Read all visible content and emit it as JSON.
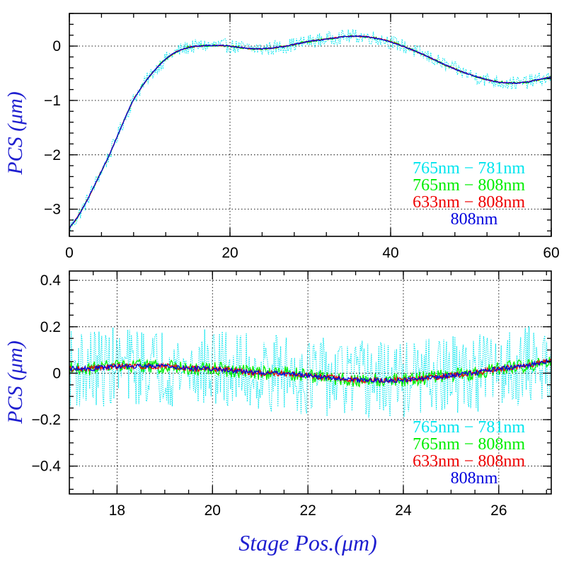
{
  "chart_data": [
    {
      "type": "line",
      "panel": "top",
      "ylabel": "PCS (μm)",
      "xlabel": "",
      "xlim": [
        0,
        60
      ],
      "ylim": [
        -3.5,
        0.6
      ],
      "x_ticks": [
        0,
        20,
        40,
        60
      ],
      "y_ticks": [
        -3,
        -2,
        -1,
        0
      ],
      "grid": true,
      "legend_placement": "lower-right",
      "x": [
        0,
        1,
        2,
        3,
        4,
        5,
        6,
        7,
        8,
        9,
        10,
        11,
        12,
        13,
        14,
        15,
        16,
        17,
        18,
        19,
        20,
        21,
        22,
        23,
        24,
        25,
        26,
        27,
        28,
        29,
        30,
        31,
        32,
        33,
        34,
        35,
        36,
        37,
        38,
        39,
        40,
        41,
        42,
        43,
        44,
        45,
        46,
        47,
        48,
        49,
        50,
        51,
        52,
        53,
        54,
        55,
        56,
        57,
        58,
        59,
        60
      ],
      "series": [
        {
          "name": "765nm − 781nm",
          "color": "#00e5ee",
          "style": "dotted",
          "noise": 0.13,
          "values": [
            -3.35,
            -3.15,
            -2.9,
            -2.6,
            -2.3,
            -2.0,
            -1.65,
            -1.3,
            -0.98,
            -0.75,
            -0.55,
            -0.38,
            -0.24,
            -0.13,
            -0.06,
            -0.02,
            0.0,
            0.01,
            0.01,
            0.01,
            0.0,
            -0.02,
            -0.04,
            -0.05,
            -0.05,
            -0.04,
            -0.02,
            0.0,
            0.03,
            0.06,
            0.09,
            0.11,
            0.13,
            0.15,
            0.17,
            0.18,
            0.18,
            0.17,
            0.15,
            0.12,
            0.08,
            0.03,
            -0.03,
            -0.09,
            -0.15,
            -0.22,
            -0.29,
            -0.36,
            -0.42,
            -0.48,
            -0.53,
            -0.58,
            -0.62,
            -0.65,
            -0.67,
            -0.68,
            -0.68,
            -0.66,
            -0.63,
            -0.6,
            -0.57
          ]
        },
        {
          "name": "765nm − 808nm",
          "color": "#00ee00",
          "style": "solid",
          "noise": 0.02,
          "values": [
            -3.35,
            -3.15,
            -2.9,
            -2.6,
            -2.3,
            -2.0,
            -1.65,
            -1.3,
            -0.98,
            -0.75,
            -0.55,
            -0.38,
            -0.24,
            -0.13,
            -0.06,
            -0.02,
            0.0,
            0.01,
            0.01,
            0.01,
            0.0,
            -0.02,
            -0.04,
            -0.05,
            -0.05,
            -0.04,
            -0.02,
            0.0,
            0.03,
            0.06,
            0.09,
            0.11,
            0.13,
            0.15,
            0.17,
            0.18,
            0.18,
            0.17,
            0.15,
            0.12,
            0.08,
            0.03,
            -0.03,
            -0.09,
            -0.15,
            -0.22,
            -0.29,
            -0.36,
            -0.42,
            -0.48,
            -0.53,
            -0.58,
            -0.62,
            -0.65,
            -0.67,
            -0.68,
            -0.68,
            -0.66,
            -0.63,
            -0.6,
            -0.57
          ]
        },
        {
          "name": "633nm − 808nm",
          "color": "#ee0000",
          "style": "solid",
          "noise": 0.01,
          "values": [
            -3.35,
            -3.15,
            -2.9,
            -2.6,
            -2.3,
            -2.0,
            -1.65,
            -1.3,
            -0.98,
            -0.75,
            -0.55,
            -0.38,
            -0.24,
            -0.13,
            -0.06,
            -0.02,
            0.0,
            0.01,
            0.01,
            0.01,
            0.0,
            -0.02,
            -0.04,
            -0.05,
            -0.05,
            -0.04,
            -0.02,
            0.0,
            0.03,
            0.06,
            0.09,
            0.11,
            0.13,
            0.15,
            0.17,
            0.18,
            0.18,
            0.17,
            0.15,
            0.12,
            0.08,
            0.03,
            -0.03,
            -0.09,
            -0.15,
            -0.22,
            -0.29,
            -0.36,
            -0.42,
            -0.48,
            -0.53,
            -0.58,
            -0.62,
            -0.65,
            -0.67,
            -0.68,
            -0.68,
            -0.66,
            -0.63,
            -0.6,
            -0.57
          ]
        },
        {
          "name": "808nm",
          "color": "#0000dd",
          "style": "solid",
          "noise": 0.01,
          "values": [
            -3.35,
            -3.15,
            -2.9,
            -2.6,
            -2.3,
            -2.0,
            -1.65,
            -1.3,
            -0.98,
            -0.75,
            -0.55,
            -0.38,
            -0.24,
            -0.13,
            -0.06,
            -0.02,
            0.0,
            0.01,
            0.01,
            0.01,
            0.0,
            -0.02,
            -0.04,
            -0.05,
            -0.05,
            -0.04,
            -0.02,
            0.0,
            0.03,
            0.06,
            0.09,
            0.11,
            0.13,
            0.15,
            0.17,
            0.18,
            0.18,
            0.17,
            0.15,
            0.12,
            0.08,
            0.03,
            -0.03,
            -0.09,
            -0.15,
            -0.22,
            -0.29,
            -0.36,
            -0.42,
            -0.48,
            -0.53,
            -0.58,
            -0.62,
            -0.65,
            -0.67,
            -0.68,
            -0.68,
            -0.66,
            -0.63,
            -0.6,
            -0.57
          ]
        }
      ]
    },
    {
      "type": "line",
      "panel": "bottom",
      "ylabel": "PCS (μm)",
      "xlabel": "Stage Pos.(μm)",
      "xlim": [
        17.0,
        27.1
      ],
      "ylim": [
        -0.52,
        0.44
      ],
      "x_ticks": [
        18,
        20,
        22,
        24,
        26
      ],
      "y_ticks": [
        -0.4,
        -0.2,
        0,
        0.2,
        0.4
      ],
      "grid": true,
      "legend_placement": "lower-right",
      "x": [
        17,
        17.5,
        18,
        18.5,
        19,
        19.5,
        20,
        20.5,
        21,
        21.5,
        22,
        22.5,
        23,
        23.5,
        24,
        24.5,
        25,
        25.5,
        26,
        26.5,
        27
      ],
      "series": [
        {
          "name": "765nm − 781nm",
          "color": "#00e5ee",
          "style": "dotted",
          "noise": 0.17,
          "values": [
            0.02,
            0.02,
            0.03,
            0.03,
            0.03,
            0.02,
            0.02,
            0.01,
            0.0,
            0.0,
            -0.01,
            -0.02,
            -0.03,
            -0.03,
            -0.03,
            -0.02,
            -0.01,
            0.0,
            0.02,
            0.03,
            0.05
          ]
        },
        {
          "name": "765nm − 808nm",
          "color": "#00ee00",
          "style": "solid",
          "noise": 0.03,
          "values": [
            0.02,
            0.02,
            0.03,
            0.03,
            0.03,
            0.02,
            0.02,
            0.01,
            0.0,
            0.0,
            -0.01,
            -0.02,
            -0.03,
            -0.03,
            -0.03,
            -0.02,
            -0.01,
            0.0,
            0.02,
            0.03,
            0.05
          ]
        },
        {
          "name": "633nm − 808nm",
          "color": "#ee0000",
          "style": "solid",
          "noise": 0.012,
          "values": [
            0.02,
            0.02,
            0.03,
            0.03,
            0.03,
            0.02,
            0.02,
            0.01,
            0.0,
            0.0,
            -0.01,
            -0.02,
            -0.03,
            -0.03,
            -0.03,
            -0.02,
            -0.01,
            0.0,
            0.02,
            0.03,
            0.05
          ]
        },
        {
          "name": "808nm",
          "color": "#0000dd",
          "style": "solid",
          "noise": 0.01,
          "values": [
            0.02,
            0.02,
            0.03,
            0.03,
            0.03,
            0.02,
            0.02,
            0.01,
            0.0,
            0.0,
            -0.01,
            -0.02,
            -0.03,
            -0.03,
            -0.03,
            -0.02,
            -0.01,
            0.0,
            0.02,
            0.03,
            0.05
          ]
        }
      ]
    }
  ]
}
